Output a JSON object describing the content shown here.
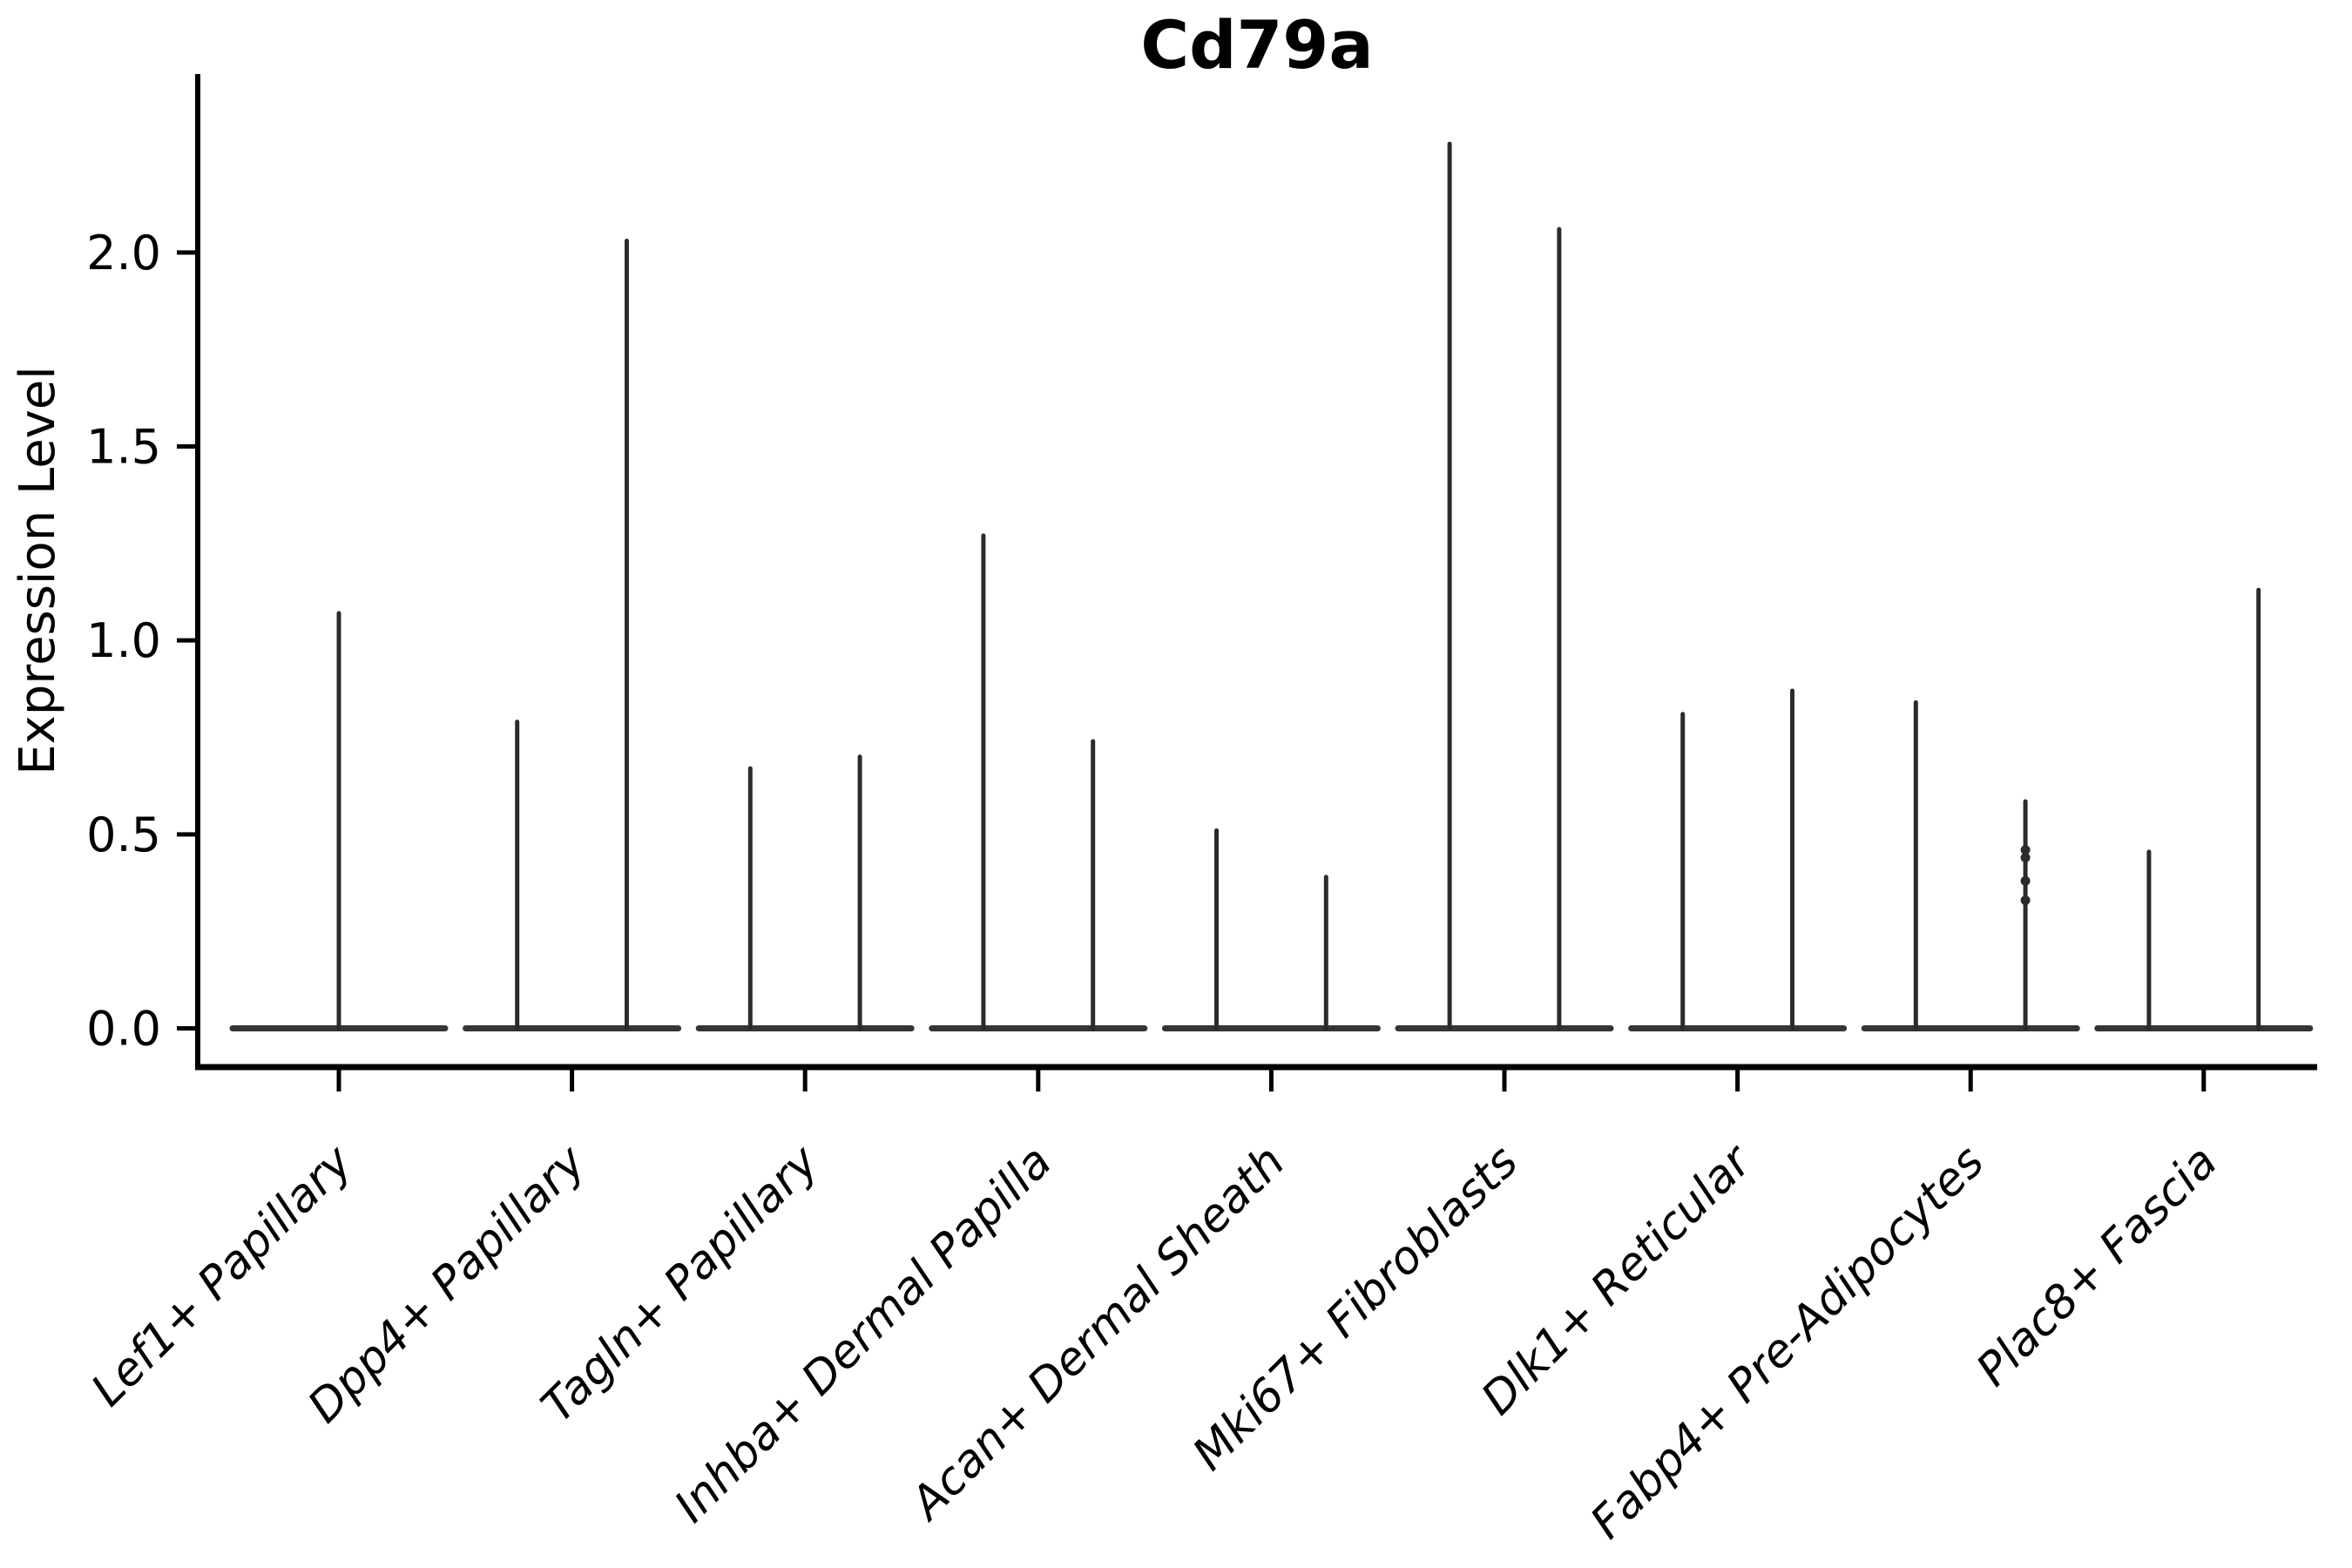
{
  "chart_data": {
    "type": "violin",
    "title": "Cd79a",
    "ylabel": "Expression Level",
    "xlabel": "",
    "yticks": [
      0.0,
      0.5,
      1.0,
      1.5,
      2.0
    ],
    "ylim": [
      -0.1,
      2.46
    ],
    "grid": false,
    "legend_position": "none",
    "line_color": "#2b2b2b",
    "axis_color": "#000000",
    "baseline_halfwidth": 0.456,
    "categories": [
      "Lef1+ Papillary",
      "Dpp4+ Papillary",
      "Tagln+ Papillary",
      "Inhba+ Dermal Papilla",
      "Acan+ Dermal Sheath",
      "Mki67+ Fibroblasts",
      "Dlk1+ Reticular",
      "Fabp4+ Pre-Adipocytes",
      "Plac8+ Fascia"
    ],
    "violins": [
      {
        "category": "Lef1+ Papillary",
        "spikes": [
          {
            "offset": 0,
            "max": 1.07
          }
        ],
        "dots": []
      },
      {
        "category": "Dpp4+ Papillary",
        "spikes": [
          {
            "offset": -0.235,
            "max": 0.79
          },
          {
            "offset": 0.235,
            "max": 2.03
          }
        ],
        "dots": []
      },
      {
        "category": "Tagln+ Papillary",
        "spikes": [
          {
            "offset": -0.235,
            "max": 0.67
          },
          {
            "offset": 0.235,
            "max": 0.7
          }
        ],
        "dots": []
      },
      {
        "category": "Inhba+ Dermal Papilla",
        "spikes": [
          {
            "offset": -0.235,
            "max": 1.27
          },
          {
            "offset": 0.235,
            "max": 0.74
          }
        ],
        "dots": []
      },
      {
        "category": "Acan+ Dermal Sheath",
        "spikes": [
          {
            "offset": -0.235,
            "max": 0.51
          },
          {
            "offset": 0.235,
            "max": 0.39
          }
        ],
        "dots": []
      },
      {
        "category": "Mki67+ Fibroblasts",
        "spikes": [
          {
            "offset": -0.235,
            "max": 2.28
          },
          {
            "offset": 0.235,
            "max": 2.06
          }
        ],
        "dots": []
      },
      {
        "category": "Dlk1+ Reticular",
        "spikes": [
          {
            "offset": -0.235,
            "max": 0.81
          },
          {
            "offset": 0.235,
            "max": 0.87
          }
        ],
        "dots": []
      },
      {
        "category": "Fabp4+ Pre-Adipocytes",
        "spikes": [
          {
            "offset": -0.235,
            "max": 0.84
          },
          {
            "offset": 0.235,
            "max": 0.585
          }
        ],
        "dots": [
          {
            "offset": 0.235,
            "value": 0.33
          },
          {
            "offset": 0.235,
            "value": 0.38
          },
          {
            "offset": 0.235,
            "value": 0.44
          },
          {
            "offset": 0.235,
            "value": 0.46
          }
        ]
      },
      {
        "category": "Plac8+ Fascia",
        "spikes": [
          {
            "offset": -0.235,
            "max": 0.455
          },
          {
            "offset": 0.235,
            "max": 1.13
          }
        ],
        "dots": []
      }
    ]
  }
}
